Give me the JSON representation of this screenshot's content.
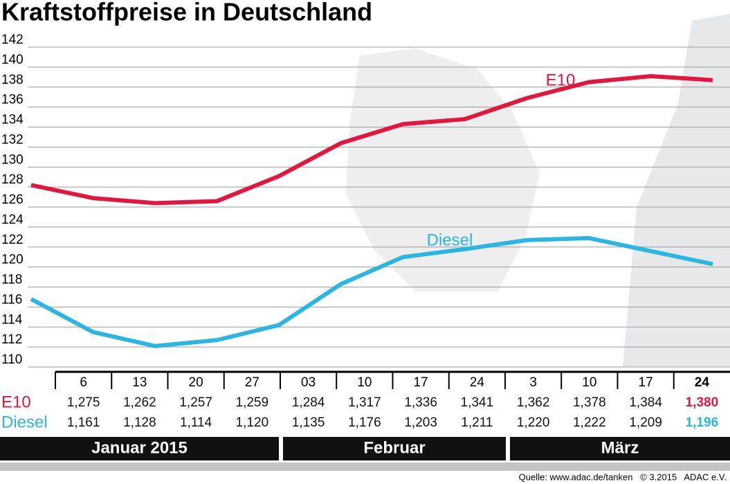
{
  "chart_data": {
    "type": "line",
    "title": "Kraftstoffpreise in Deutschland",
    "categories": [
      "6",
      "13",
      "20",
      "27",
      "03",
      "10",
      "17",
      "24",
      "3",
      "10",
      "17",
      "24"
    ],
    "months": [
      "Januar 2015",
      "Februar",
      "März"
    ],
    "series": [
      {
        "name": "E10",
        "color": "#e3173e",
        "values": [
          127.5,
          126.2,
          125.7,
          125.9,
          128.4,
          131.7,
          133.6,
          134.1,
          136.2,
          137.8,
          138.4,
          138.0
        ],
        "value_labels": [
          "1,275",
          "1,262",
          "1,257",
          "1,259",
          "1,284",
          "1,317",
          "1,336",
          "1,341",
          "1,362",
          "1,378",
          "1,384",
          "1,380"
        ]
      },
      {
        "name": "Diesel",
        "color": "#29b6e3",
        "values": [
          116.1,
          112.8,
          111.4,
          112.0,
          113.5,
          117.6,
          120.3,
          121.1,
          122.0,
          122.2,
          120.9,
          119.6
        ],
        "value_labels": [
          "1,161",
          "1,128",
          "1,114",
          "1,120",
          "1,135",
          "1,176",
          "1,203",
          "1,211",
          "1,220",
          "1,222",
          "1,209",
          "1,196"
        ]
      }
    ],
    "ylim": [
      110,
      142
    ],
    "yticks": [
      110,
      112,
      114,
      116,
      118,
      120,
      122,
      124,
      126,
      128,
      130,
      132,
      134,
      136,
      138,
      140,
      142
    ],
    "grid": true,
    "source": "Quelle: www.adac.de/tanken   © 3.2015   ADAC e.V."
  }
}
